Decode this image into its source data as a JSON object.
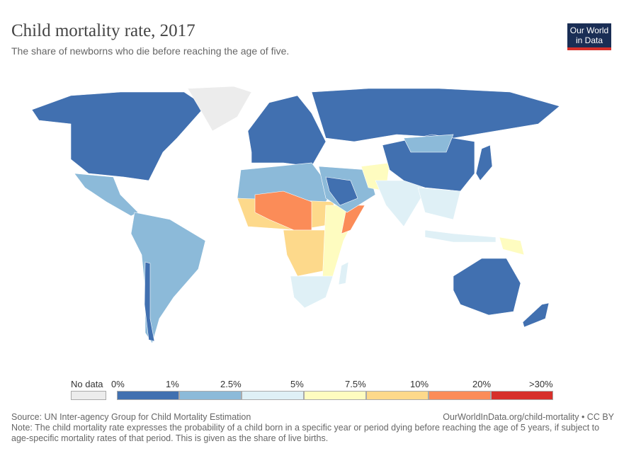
{
  "header": {
    "title": "Child mortality rate, 2017",
    "subtitle": "The share of newborns who die before reaching the age of five.",
    "logo": "Our World in Data"
  },
  "legend": {
    "no_data_label": "No data",
    "no_data_color": "#ececec",
    "ticks": [
      "0%",
      "1%",
      "2.5%",
      "5%",
      "7.5%",
      "10%",
      "20%",
      ">30%"
    ],
    "bins": [
      {
        "range": "0-1%",
        "color": "#4170b0"
      },
      {
        "range": "1-2.5%",
        "color": "#8cbad9"
      },
      {
        "range": "2.5-5%",
        "color": "#dff0f6"
      },
      {
        "range": "5-7.5%",
        "color": "#fefcc0"
      },
      {
        "range": "7.5-10%",
        "color": "#fdd98b"
      },
      {
        "range": "10-20%",
        "color": "#fb8c58"
      },
      {
        "range": ">30%",
        "color": "#d7302b"
      }
    ]
  },
  "footer": {
    "source": "Source: UN Inter-agency Group for Child Mortality Estimation",
    "credit": "OurWorldInData.org/child-mortality • CC BY",
    "note": "Note: The child mortality rate expresses the probability of a child born in a specific year or period dying before reaching the age of 5 years, if subject to age-specific mortality rates of that period. This is given as the share of live births."
  }
}
